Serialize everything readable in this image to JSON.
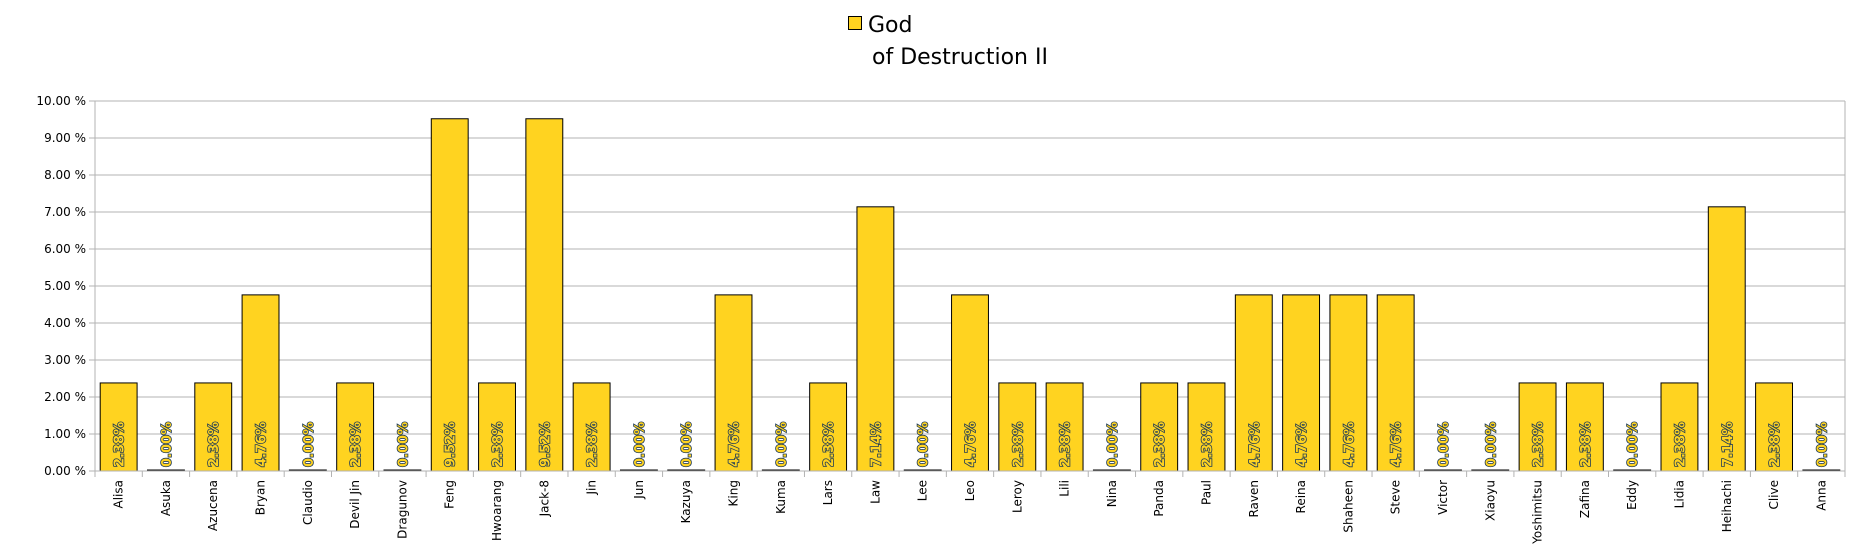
{
  "chart_data": {
    "type": "bar",
    "title": "",
    "xlabel": "",
    "ylabel": "",
    "ylim": [
      0,
      10
    ],
    "ytick_labels": [
      "0.00 %",
      "1.00 %",
      "2.00 %",
      "3.00 %",
      "4.00 %",
      "5.00 %",
      "6.00 %",
      "7.00 %",
      "8.00 %",
      "9.00 %",
      "10.00 %"
    ],
    "grid": true,
    "legend": "top-center",
    "colors": {
      "bar": "#ffd320",
      "bar_border": "#000000",
      "grid": "#b3b3b3",
      "label_text": "#1f3b57"
    },
    "categories": [
      "Alisa",
      "Asuka",
      "Azucena",
      "Bryan",
      "Claudio",
      "Devil Jin",
      "Dragunov",
      "Feng",
      "Hwoarang",
      "Jack-8",
      "Jin",
      "Jun",
      "Kazuya",
      "King",
      "Kuma",
      "Lars",
      "Law",
      "Lee",
      "Leo",
      "Leroy",
      "Lili",
      "Nina",
      "Panda",
      "Paul",
      "Raven",
      "Reina",
      "Shaheen",
      "Steve",
      "Victor",
      "Xiaoyu",
      "Yoshimitsu",
      "Zafina",
      "Eddy",
      "Lidia",
      "Heihachi",
      "Clive",
      "Anna"
    ],
    "series": [
      {
        "name": "God of Destruction II",
        "name_lines": [
          "God",
          "of Destruction II"
        ],
        "values": [
          2.38,
          0.0,
          2.38,
          4.76,
          0.0,
          2.38,
          0.0,
          9.52,
          2.38,
          9.52,
          2.38,
          0.0,
          0.0,
          4.76,
          0.0,
          2.38,
          7.14,
          0.0,
          4.76,
          2.38,
          2.38,
          0.0,
          2.38,
          2.38,
          4.76,
          4.76,
          4.76,
          4.76,
          0.0,
          0.0,
          2.38,
          2.38,
          0.0,
          2.38,
          7.14,
          2.38,
          0.0
        ],
        "data_labels": [
          "2.38%",
          "0.00%",
          "2.38%",
          "4.76%",
          "0.00%",
          "2.38%",
          "0.00%",
          "9.52%",
          "2.38%",
          "9.52%",
          "2.38%",
          "0.00%",
          "0.00%",
          "4.76%",
          "0.00%",
          "2.38%",
          "7.14%",
          "0.00%",
          "4.76%",
          "2.38%",
          "2.38%",
          "0.00%",
          "2.38%",
          "2.38%",
          "4.76%",
          "4.76%",
          "4.76%",
          "4.76%",
          "0.00%",
          "0.00%",
          "2.38%",
          "2.38%",
          "0.00%",
          "2.38%",
          "7.14%",
          "2.38%",
          "0.00%"
        ]
      }
    ]
  }
}
